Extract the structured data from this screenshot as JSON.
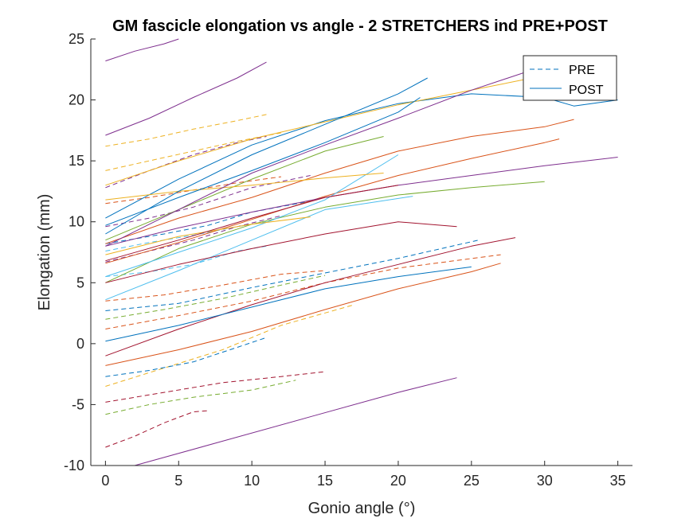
{
  "chart_data": {
    "type": "line",
    "title": "GM fascicle elongation vs angle - 2 STRETCHERS ind PRE+POST",
    "xlabel": "Gonio angle (°)",
    "ylabel": "Elongation (mm)",
    "xlim": [
      -1,
      36
    ],
    "ylim": [
      -10,
      25
    ],
    "xticks": [
      "0",
      "5",
      "10",
      "15",
      "20",
      "25",
      "30",
      "35"
    ],
    "yticks": [
      "-10",
      "-5",
      "0",
      "5",
      "10",
      "15",
      "20",
      "25"
    ],
    "grid": false,
    "legend_position": "top-right",
    "legend": [
      {
        "label": "PRE",
        "style": "dashed"
      },
      {
        "label": "POST",
        "style": "solid"
      }
    ],
    "colors": [
      "#0072BD",
      "#D95319",
      "#EDB120",
      "#7E2F8E",
      "#77AC30",
      "#4DBEEE",
      "#A2142F"
    ],
    "series": [
      {
        "group": "PRE",
        "color": "#0072BD",
        "x": [
          0,
          5,
          10,
          15,
          20,
          25.5
        ],
        "y": [
          2.7,
          3.3,
          4.6,
          5.8,
          7.0,
          8.5
        ]
      },
      {
        "group": "PRE",
        "color": "#D95319",
        "x": [
          0,
          5,
          10,
          15,
          20,
          27
        ],
        "y": [
          1.2,
          2.3,
          3.5,
          5.0,
          6.2,
          7.3
        ]
      },
      {
        "group": "PRE",
        "color": "#EDB120",
        "x": [
          0,
          4,
          8,
          12,
          17
        ],
        "y": [
          -3.5,
          -2.0,
          -0.5,
          1.5,
          3.2
        ]
      },
      {
        "group": "PRE",
        "color": "#7E2F8E",
        "x": [
          0,
          3,
          6,
          9,
          11
        ],
        "y": [
          12.8,
          14.2,
          15.5,
          16.5,
          17.0
        ]
      },
      {
        "group": "PRE",
        "color": "#77AC30",
        "x": [
          0,
          3,
          6,
          10,
          13
        ],
        "y": [
          -5.8,
          -5.0,
          -4.4,
          -3.8,
          -3.0
        ]
      },
      {
        "group": "PRE",
        "color": "#4DBEEE",
        "x": [
          0,
          3,
          6,
          9,
          11
        ],
        "y": [
          5.5,
          5.9,
          6.5,
          7.6,
          8.0
        ]
      },
      {
        "group": "PRE",
        "color": "#A2142F",
        "x": [
          0,
          4,
          8,
          12,
          15
        ],
        "y": [
          -4.8,
          -4.0,
          -3.2,
          -2.7,
          -2.3
        ]
      },
      {
        "group": "PRE",
        "color": "#0072BD",
        "x": [
          0,
          4,
          7,
          10,
          14
        ],
        "y": [
          8.2,
          9.0,
          9.7,
          10.8,
          11.7
        ]
      },
      {
        "group": "PRE",
        "color": "#D95319",
        "x": [
          0,
          4,
          8,
          12,
          15
        ],
        "y": [
          3.5,
          4.0,
          4.8,
          5.7,
          6.0
        ]
      },
      {
        "group": "PRE",
        "color": "#EDB120",
        "x": [
          0,
          3,
          6,
          9,
          11
        ],
        "y": [
          16.2,
          16.8,
          17.6,
          18.3,
          18.8
        ]
      },
      {
        "group": "PRE",
        "color": "#7E2F8E",
        "x": [
          0,
          3,
          6,
          10,
          14
        ],
        "y": [
          9.6,
          10.3,
          11.2,
          12.8,
          13.8
        ]
      },
      {
        "group": "PRE",
        "color": "#77AC30",
        "x": [
          0,
          4,
          8,
          12,
          15
        ],
        "y": [
          2.0,
          2.8,
          3.7,
          4.8,
          5.6
        ]
      },
      {
        "group": "PRE",
        "color": "#4DBEEE",
        "x": [
          0,
          3,
          6,
          9,
          11
        ],
        "y": [
          7.6,
          8.3,
          8.9,
          9.6,
          10.0
        ]
      },
      {
        "group": "PRE",
        "color": "#A2142F",
        "x": [
          0,
          2,
          4,
          6,
          7
        ],
        "y": [
          -8.5,
          -7.6,
          -6.5,
          -5.6,
          -5.5
        ]
      },
      {
        "group": "PRE",
        "color": "#0072BD",
        "x": [
          0,
          3,
          6,
          9,
          11
        ],
        "y": [
          -2.7,
          -2.2,
          -1.5,
          -0.3,
          0.5
        ]
      },
      {
        "group": "PRE",
        "color": "#D95319",
        "x": [
          0,
          3,
          6,
          9,
          12
        ],
        "y": [
          11.5,
          12.0,
          12.6,
          13.2,
          13.7
        ]
      },
      {
        "group": "PRE",
        "color": "#EDB120",
        "x": [
          0,
          3,
          6,
          9,
          12
        ],
        "y": [
          14.2,
          15.0,
          15.8,
          16.6,
          17.3
        ]
      },
      {
        "group": "PRE",
        "color": "#7E2F8E",
        "x": [
          0,
          3,
          6,
          9,
          12
        ],
        "y": [
          6.7,
          7.6,
          8.5,
          9.6,
          10.5
        ]
      },
      {
        "group": "POST",
        "color": "#0072BD",
        "x": [
          0,
          5,
          10,
          15,
          20,
          25,
          30,
          32,
          35
        ],
        "y": [
          10.3,
          13.5,
          16.3,
          18.3,
          19.7,
          20.5,
          20.2,
          19.5,
          20.0
        ]
      },
      {
        "group": "POST",
        "color": "#D95319",
        "x": [
          0,
          5,
          10,
          15,
          20,
          25,
          30,
          31
        ],
        "y": [
          6.6,
          8.3,
          10.2,
          12.1,
          13.8,
          15.2,
          16.5,
          16.8
        ]
      },
      {
        "group": "POST",
        "color": "#EDB120",
        "x": [
          0,
          5,
          10,
          15,
          20,
          25,
          30,
          34
        ],
        "y": [
          13.0,
          15.0,
          16.8,
          18.2,
          19.6,
          20.8,
          22.0,
          23.0
        ]
      },
      {
        "group": "POST",
        "color": "#7E2F8E",
        "x": [
          0,
          2,
          4,
          5
        ],
        "y": [
          23.2,
          24.0,
          24.6,
          25.0
        ]
      },
      {
        "group": "POST",
        "color": "#7E2F8E",
        "x": [
          0,
          3,
          6,
          9,
          11
        ],
        "y": [
          17.1,
          18.5,
          20.2,
          21.8,
          23.1
        ]
      },
      {
        "group": "POST",
        "color": "#7E2F8E",
        "x": [
          0,
          5,
          10,
          15,
          20,
          25,
          30,
          35
        ],
        "y": [
          8.0,
          9.5,
          10.8,
          12.0,
          13.0,
          13.8,
          14.6,
          15.3
        ]
      },
      {
        "group": "POST",
        "color": "#7E2F8E",
        "x": [
          2,
          8,
          14,
          20,
          24
        ],
        "y": [
          -10.0,
          -8.0,
          -6.0,
          -4.0,
          -2.8
        ]
      },
      {
        "group": "POST",
        "color": "#77AC30",
        "x": [
          0,
          5,
          10,
          15,
          20,
          25,
          30
        ],
        "y": [
          5.0,
          7.8,
          9.8,
          11.2,
          12.2,
          12.8,
          13.3
        ]
      },
      {
        "group": "POST",
        "color": "#77AC30",
        "x": [
          0,
          5,
          10,
          15,
          19
        ],
        "y": [
          8.5,
          11.0,
          13.5,
          15.8,
          17.0
        ]
      },
      {
        "group": "POST",
        "color": "#4DBEEE",
        "x": [
          0,
          5,
          10,
          15,
          21
        ],
        "y": [
          3.6,
          6.0,
          8.5,
          11.0,
          12.1
        ]
      },
      {
        "group": "POST",
        "color": "#4DBEEE",
        "x": [
          0,
          5,
          10,
          15,
          20
        ],
        "y": [
          5.5,
          7.5,
          9.5,
          11.8,
          15.5
        ]
      },
      {
        "group": "POST",
        "color": "#A2142F",
        "x": [
          0,
          5,
          10,
          15,
          20,
          24
        ],
        "y": [
          5.0,
          6.5,
          7.8,
          9.0,
          10.0,
          9.6
        ]
      },
      {
        "group": "POST",
        "color": "#A2142F",
        "x": [
          0,
          5,
          10,
          15,
          20,
          25,
          28
        ],
        "y": [
          -1.0,
          1.2,
          3.2,
          5.0,
          6.5,
          8.0,
          8.7
        ]
      },
      {
        "group": "POST",
        "color": "#D95319",
        "x": [
          0,
          5,
          10,
          15,
          20,
          25,
          27
        ],
        "y": [
          -1.8,
          -0.5,
          1.0,
          2.8,
          4.5,
          5.9,
          6.6
        ]
      },
      {
        "group": "POST",
        "color": "#0072BD",
        "x": [
          0,
          5,
          10,
          15,
          20,
          25
        ],
        "y": [
          0.2,
          1.5,
          3.0,
          4.5,
          5.5,
          6.3
        ]
      },
      {
        "group": "POST",
        "color": "#D95319",
        "x": [
          0,
          5,
          10,
          15,
          20,
          25,
          30,
          32
        ],
        "y": [
          8.2,
          10.3,
          12.0,
          14.0,
          15.8,
          17.0,
          17.8,
          18.4
        ]
      },
      {
        "group": "POST",
        "color": "#EDB120",
        "x": [
          0,
          5,
          10,
          15,
          19
        ],
        "y": [
          11.8,
          12.5,
          13.0,
          13.6,
          14.0
        ]
      },
      {
        "group": "POST",
        "color": "#EDB120",
        "x": [
          0,
          5,
          10,
          14
        ],
        "y": [
          7.3,
          8.8,
          9.8,
          10.4
        ]
      },
      {
        "group": "POST",
        "color": "#0072BD",
        "x": [
          0,
          5,
          10,
          15,
          20,
          21.5
        ],
        "y": [
          9.7,
          12.0,
          14.2,
          16.5,
          19.0,
          20.2
        ]
      },
      {
        "group": "POST",
        "color": "#7E2F8E",
        "x": [
          0,
          5,
          10,
          15,
          20,
          25,
          30,
          32
        ],
        "y": [
          8.0,
          11.0,
          14.0,
          16.3,
          18.5,
          20.8,
          22.8,
          23.5
        ]
      },
      {
        "group": "POST",
        "color": "#A2142F",
        "x": [
          0,
          5,
          10,
          15,
          20
        ],
        "y": [
          6.8,
          8.5,
          10.3,
          12.0,
          13.0
        ]
      },
      {
        "group": "POST",
        "color": "#0072BD",
        "x": [
          0,
          5,
          10,
          15,
          20,
          22
        ],
        "y": [
          9.0,
          12.5,
          15.5,
          18.0,
          20.5,
          21.8
        ]
      }
    ]
  }
}
